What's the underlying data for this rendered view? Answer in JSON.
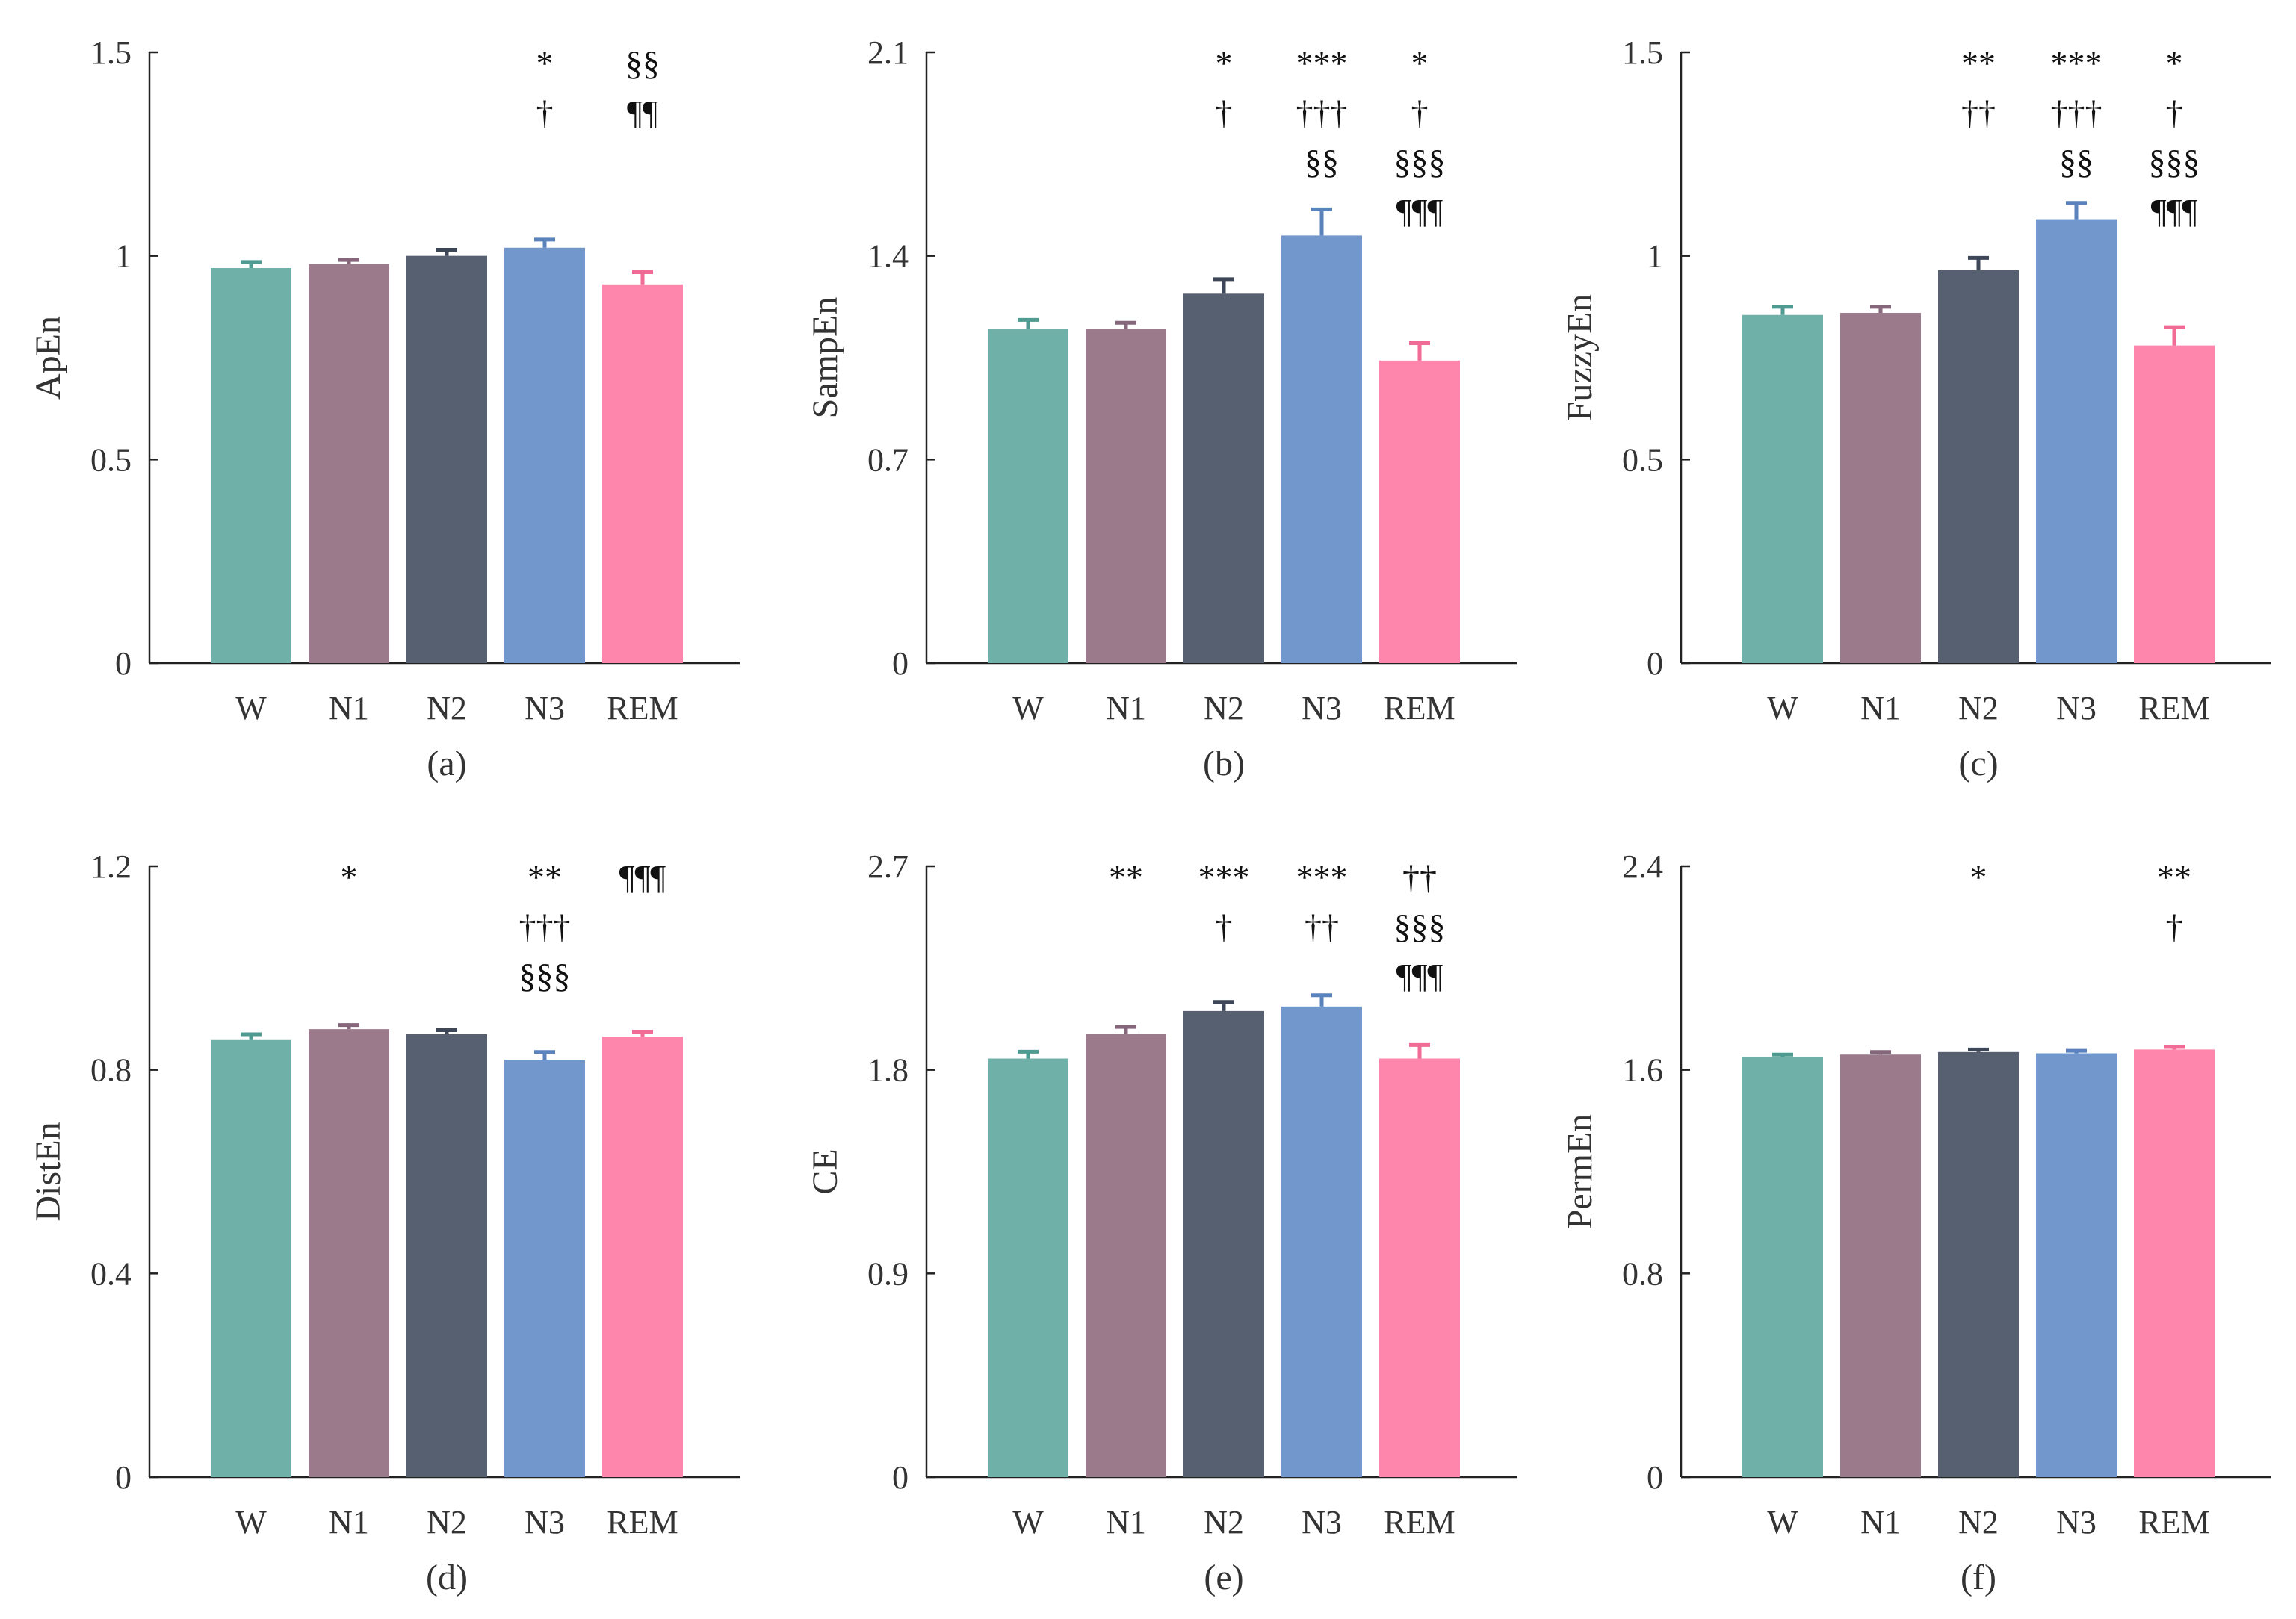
{
  "chart_data": [
    {
      "type": "bar",
      "caption": "(a)",
      "ylabel": "ApEn",
      "categories": [
        "W",
        "N1",
        "N2",
        "N3",
        "REM"
      ],
      "values": [
        0.97,
        0.98,
        1.0,
        1.02,
        0.93
      ],
      "errors": [
        0.015,
        0.01,
        0.015,
        0.02,
        0.03
      ],
      "ylim": [
        0,
        1.5
      ],
      "ytick_labels": [
        "0",
        "0.5",
        "1",
        "1.5"
      ],
      "annotations": [
        [],
        [],
        [],
        [
          "*",
          "†"
        ],
        [
          "§§",
          "¶¶"
        ]
      ]
    },
    {
      "type": "bar",
      "caption": "(b)",
      "ylabel": "SampEn",
      "categories": [
        "W",
        "N1",
        "N2",
        "N3",
        "REM"
      ],
      "values": [
        1.15,
        1.15,
        1.27,
        1.47,
        1.04
      ],
      "errors": [
        0.03,
        0.02,
        0.05,
        0.09,
        0.06
      ],
      "ylim": [
        0,
        2.1
      ],
      "ytick_labels": [
        "0",
        "0.7",
        "1.4",
        "2.1"
      ],
      "annotations": [
        [],
        [],
        [
          "*",
          "†"
        ],
        [
          "***",
          "†††",
          "§§"
        ],
        [
          "*",
          "†",
          "§§§",
          "¶¶¶"
        ]
      ]
    },
    {
      "type": "bar",
      "caption": "(c)",
      "ylabel": "FuzzyEn",
      "categories": [
        "W",
        "N1",
        "N2",
        "N3",
        "REM"
      ],
      "values": [
        0.855,
        0.86,
        0.965,
        1.09,
        0.78
      ],
      "errors": [
        0.02,
        0.015,
        0.03,
        0.04,
        0.045
      ],
      "ylim": [
        0,
        1.5
      ],
      "ytick_labels": [
        "0",
        "0.5",
        "1",
        "1.5"
      ],
      "annotations": [
        [],
        [],
        [
          "**",
          "††"
        ],
        [
          "***",
          "†††",
          "§§"
        ],
        [
          "*",
          "†",
          "§§§",
          "¶¶¶"
        ]
      ]
    },
    {
      "type": "bar",
      "caption": "(d)",
      "ylabel": "DistEn",
      "categories": [
        "W",
        "N1",
        "N2",
        "N3",
        "REM"
      ],
      "values": [
        0.86,
        0.88,
        0.87,
        0.82,
        0.865
      ],
      "errors": [
        0.01,
        0.008,
        0.008,
        0.015,
        0.01
      ],
      "ylim": [
        0,
        1.2
      ],
      "ytick_labels": [
        "0",
        "0.4",
        "0.8",
        "1.2"
      ],
      "annotations": [
        [],
        [
          "*"
        ],
        [],
        [
          "**",
          "†††",
          "§§§"
        ],
        [
          "¶¶¶"
        ]
      ]
    },
    {
      "type": "bar",
      "caption": "(e)",
      "ylabel": "CE",
      "categories": [
        "W",
        "N1",
        "N2",
        "N3",
        "REM"
      ],
      "values": [
        1.85,
        1.96,
        2.06,
        2.08,
        1.85
      ],
      "errors": [
        0.03,
        0.03,
        0.04,
        0.05,
        0.06
      ],
      "ylim": [
        0,
        2.7
      ],
      "ytick_labels": [
        "0",
        "0.9",
        "1.8",
        "2.7"
      ],
      "annotations": [
        [],
        [
          "**"
        ],
        [
          "***",
          "†"
        ],
        [
          "***",
          "††"
        ],
        [
          "††",
          "§§§",
          "¶¶¶"
        ]
      ]
    },
    {
      "type": "bar",
      "caption": "(f)",
      "ylabel": "PermEn",
      "categories": [
        "W",
        "N1",
        "N2",
        "N3",
        "REM"
      ],
      "values": [
        1.65,
        1.66,
        1.67,
        1.665,
        1.68
      ],
      "errors": [
        0.01,
        0.01,
        0.01,
        0.01,
        0.01
      ],
      "ylim": [
        0,
        2.4
      ],
      "ytick_labels": [
        "0",
        "0.8",
        "1.6",
        "2.4"
      ],
      "annotations": [
        [],
        [],
        [
          "*"
        ],
        [],
        [
          "**",
          "†"
        ]
      ]
    }
  ],
  "colors": {
    "bars": [
      "#6fb1a9",
      "#9b7a8b",
      "#566070",
      "#7197cd",
      "#fe85ac"
    ],
    "error_bars": [
      "#4f9a91",
      "#86667a",
      "#3d4757",
      "#5a82bd",
      "#f06b95"
    ],
    "axis": "#222222"
  }
}
